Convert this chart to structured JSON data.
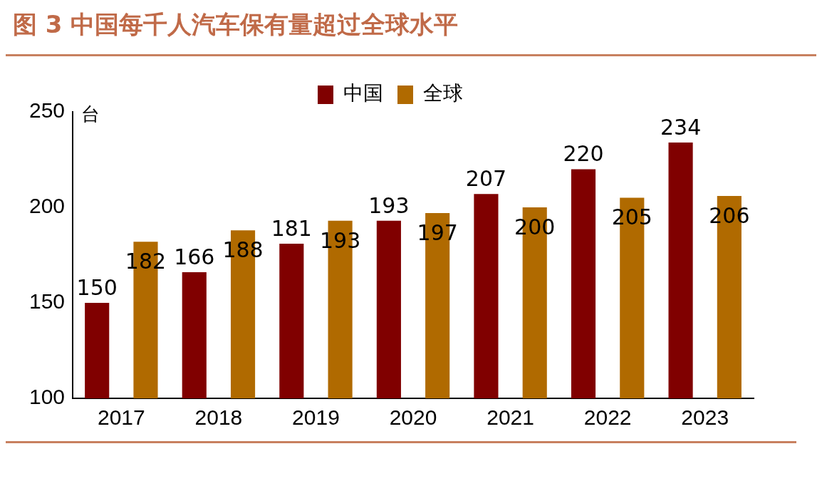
{
  "chart_data": {
    "type": "bar",
    "title": "图 3 中国每千人汽车保有量超过全球水平",
    "ylabel": "台",
    "categories": [
      "2017",
      "2018",
      "2019",
      "2020",
      "2021",
      "2022",
      "2023"
    ],
    "series": [
      {
        "name": "中国",
        "color": "#800000",
        "values": [
          150,
          166,
          181,
          193,
          207,
          220,
          234
        ]
      },
      {
        "name": "全球",
        "color": "#b06a00",
        "values": [
          182,
          188,
          193,
          197,
          200,
          205,
          206
        ]
      }
    ],
    "ylim": [
      100,
      250
    ],
    "yticks": [
      100,
      150,
      200,
      250
    ],
    "grid": false,
    "legend": "top",
    "data_labels": true
  }
}
